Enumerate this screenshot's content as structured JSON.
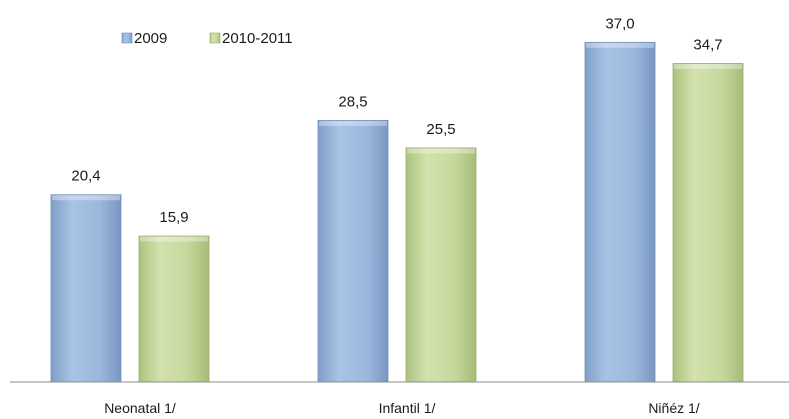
{
  "chart_data": {
    "type": "bar",
    "categories": [
      "Neonatal 1/",
      "Infantil 1/",
      "Niñéz 1/"
    ],
    "series": [
      {
        "name": "2009",
        "values": [
          20.4,
          28.5,
          37.0
        ],
        "labels": [
          "20,4",
          "28,5",
          "37,0"
        ],
        "color": "#95b3d7"
      },
      {
        "name": "2010-2011",
        "values": [
          15.9,
          25.5,
          34.7
        ],
        "labels": [
          "15,9",
          "25,5",
          "34,7"
        ],
        "color": "#c3d69b"
      }
    ],
    "ylim": [
      0,
      40
    ],
    "grid": false,
    "legend_position": "top-left"
  }
}
